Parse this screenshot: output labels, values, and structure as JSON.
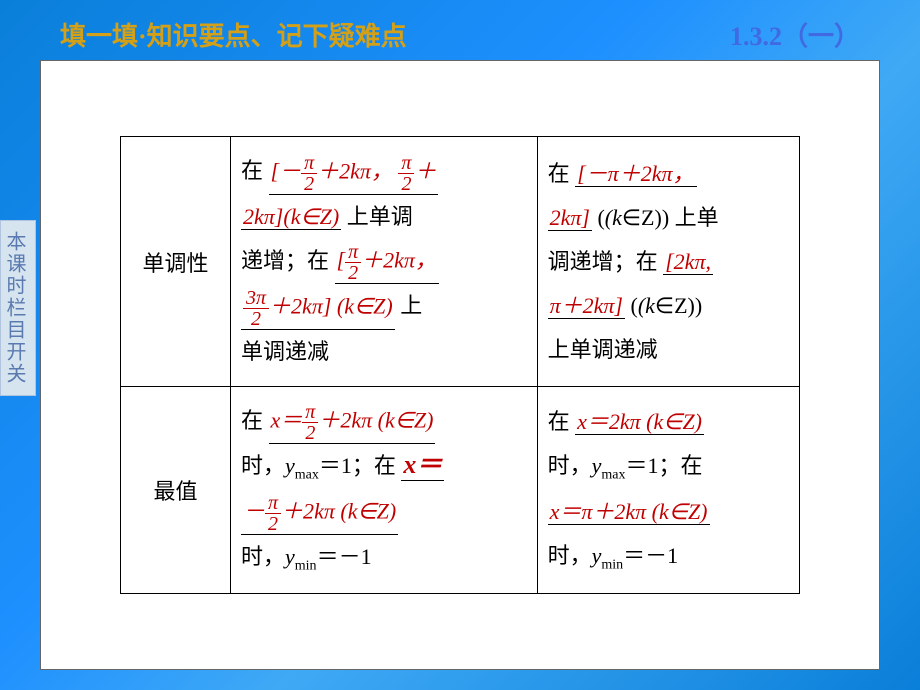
{
  "header": {
    "left": "填一填·知识要点、记下疑难点",
    "right_num": "1.3.2",
    "right_paren": "（一）"
  },
  "sidebar": {
    "label": "本课时栏目开关"
  },
  "table": {
    "row1_label": "单调性",
    "row2_label": "最值",
    "colors": {
      "text": "#000000",
      "answer": "#c00000",
      "header_left": "#d4a017",
      "header_right": "#4169e1"
    },
    "r1c1": {
      "t1": "在",
      "a1a": "[－",
      "a1_frac_num": "π",
      "a1_frac_den": "2",
      "a1b": "＋2",
      "a1c": "k",
      "a1d": "π，",
      "a1_frac2_num": "π",
      "a1_frac2_den": "2",
      "a1e": "＋",
      "a2a": "2",
      "a2b": "k",
      "a2c": "π](",
      "a2d": "k",
      "a2e": "∈Z)",
      "t2": " 上单调",
      "t3": "递增；在",
      "a3a": "[",
      "a3_frac_num": "π",
      "a3_frac_den": "2",
      "a3b": "＋2",
      "a3c": "k",
      "a3d": "π，",
      "a4_frac_num": "3π",
      "a4_frac_den": "2",
      "a4a": "＋2",
      "a4b": "k",
      "a4c": "π] (",
      "a4d": "k",
      "a4e": "∈Z)",
      "t4": "上",
      "t5": "单调递减"
    },
    "r1c2": {
      "t1": "在",
      "a1a": "[－π＋2",
      "a1b": "k",
      "a1c": "π，",
      "a2a": "2",
      "a2b": "k",
      "a2c": "π] ",
      "a2d": "(k",
      "a2e": "∈Z)",
      "t2": "上单",
      "t3": "调递增；在",
      "a3a": "[2",
      "a3b": "k",
      "a3c": "π,",
      "a4a": "π＋2",
      "a4b": "k",
      "a4c": "π] ",
      "a4d": "(k",
      "a4e": "∈Z)",
      "t4": "上单调递减"
    },
    "r2c1": {
      "t1": "在",
      "a1a": "x",
      "a1b": "＝",
      "a1_frac_num": "π",
      "a1_frac_den": "2",
      "a1c": "＋2",
      "a1d": "k",
      "a1e": "π (",
      "a1f": "k",
      "a1g": "∈Z)",
      "t2": "时，",
      "t2b": "y",
      "t2c": "max",
      "t2d": "＝1；在",
      "a2a": "x",
      "a2b": "＝",
      "a3a": "－",
      "a3_frac_num": "π",
      "a3_frac_den": "2",
      "a3b": "＋2",
      "a3c": "k",
      "a3d": "π (",
      "a3e": "k",
      "a3f": "∈Z)",
      "t3": "时，",
      "t3b": "y",
      "t3c": "min",
      "t3d": "＝－1"
    },
    "r2c2": {
      "t1": "在",
      "a1a": "x",
      "a1b": "＝2",
      "a1c": "k",
      "a1d": "π (",
      "a1e": "k",
      "a1f": "∈Z)",
      "t2": "时，",
      "t2b": "y",
      "t2c": "max",
      "t2d": "＝1；在",
      "a2a": "x",
      "a2b": "＝π＋2",
      "a2c": "k",
      "a2d": "π (",
      "a2e": "k",
      "a2f": "∈Z)",
      "t3": "时，",
      "t3b": "y",
      "t3c": "min",
      "t3d": "＝－1"
    }
  }
}
